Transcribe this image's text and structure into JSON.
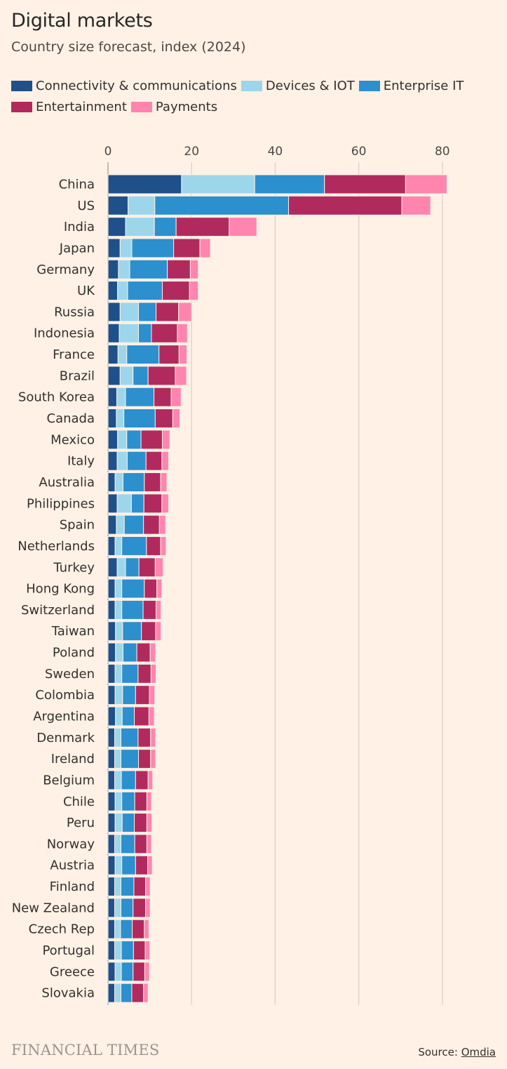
{
  "header": {
    "title": "Digital markets",
    "subtitle": "Country size forecast, index (2024)"
  },
  "footer": {
    "brand": "FINANCIAL TIMES",
    "source_prefix": "Source:",
    "source_name": "Omdia"
  },
  "chart_data": {
    "type": "bar",
    "orientation": "horizontal",
    "stacked": true,
    "title": "Digital markets",
    "subtitle": "Country size forecast, index (2024)",
    "xlim": [
      0,
      85
    ],
    "xticks": [
      0,
      20,
      40,
      60,
      80
    ],
    "grid": true,
    "legend_position": "top",
    "categories": [
      "China",
      "US",
      "India",
      "Japan",
      "Germany",
      "UK",
      "Russia",
      "Indonesia",
      "France",
      "Brazil",
      "South Korea",
      "Canada",
      "Mexico",
      "Italy",
      "Australia",
      "Philippines",
      "Spain",
      "Netherlands",
      "Turkey",
      "Hong Kong",
      "Switzerland",
      "Taiwan",
      "Poland",
      "Sweden",
      "Colombia",
      "Argentina",
      "Denmark",
      "Ireland",
      "Belgium",
      "Chile",
      "Peru",
      "Norway",
      "Austria",
      "Finland",
      "New Zealand",
      "Czech Rep",
      "Portugal",
      "Greece",
      "Slovakia"
    ],
    "series": [
      {
        "name": "Connectivity & communications",
        "color": "#1F5089",
        "values": [
          17.6,
          4.8,
          4.2,
          2.9,
          2.5,
          2.3,
          2.9,
          2.7,
          2.4,
          2.9,
          2.1,
          2.0,
          2.3,
          2.2,
          1.7,
          2.2,
          2.0,
          1.7,
          2.2,
          1.7,
          1.7,
          1.8,
          1.8,
          1.7,
          1.7,
          1.8,
          1.6,
          1.6,
          1.6,
          1.7,
          1.7,
          1.6,
          1.7,
          1.6,
          1.6,
          1.6,
          1.6,
          1.7,
          1.6
        ]
      },
      {
        "name": "Devices & IOT",
        "color": "#9DD6EA",
        "values": [
          17.5,
          6.4,
          6.9,
          2.8,
          2.7,
          2.4,
          4.4,
          4.6,
          2.1,
          3.1,
          2.1,
          1.8,
          2.2,
          2.4,
          1.9,
          3.4,
          1.9,
          1.6,
          2.0,
          1.6,
          1.6,
          1.7,
          1.8,
          1.6,
          1.8,
          1.6,
          1.5,
          1.5,
          1.6,
          1.6,
          1.7,
          1.5,
          1.6,
          1.5,
          1.5,
          1.4,
          1.6,
          1.5,
          1.5
        ]
      },
      {
        "name": "Enterprise IT",
        "color": "#2C8FCE",
        "values": [
          16.7,
          32.0,
          5.2,
          10.0,
          9.0,
          8.3,
          4.2,
          3.1,
          7.7,
          3.6,
          6.8,
          7.5,
          3.4,
          4.5,
          5.1,
          3.0,
          4.6,
          5.9,
          3.2,
          5.4,
          5.1,
          4.5,
          3.3,
          3.9,
          3.1,
          2.9,
          4.1,
          4.2,
          3.4,
          3.1,
          2.9,
          3.3,
          3.3,
          3.1,
          2.9,
          2.8,
          2.9,
          2.8,
          2.6
        ]
      },
      {
        "name": "Entertainment",
        "color": "#B12A5E",
        "values": [
          19.4,
          27.1,
          12.7,
          6.3,
          5.5,
          6.5,
          5.4,
          6.2,
          4.8,
          6.5,
          4.1,
          4.2,
          5.1,
          3.8,
          3.9,
          4.3,
          3.8,
          3.4,
          3.9,
          3.0,
          3.1,
          3.4,
          3.2,
          3.1,
          3.3,
          3.5,
          3.0,
          2.9,
          3.0,
          2.9,
          3.0,
          2.9,
          2.9,
          2.8,
          3.0,
          2.9,
          2.8,
          2.8,
          2.8
        ]
      },
      {
        "name": "Payments",
        "color": "#FF85AE",
        "values": [
          9.9,
          6.9,
          6.6,
          2.5,
          1.9,
          2.1,
          3.1,
          2.4,
          1.9,
          2.7,
          2.4,
          1.7,
          1.8,
          1.6,
          1.5,
          1.6,
          1.5,
          1.3,
          1.9,
          1.2,
          1.2,
          1.3,
          1.3,
          1.2,
          1.3,
          1.3,
          1.2,
          1.2,
          1.1,
          1.1,
          1.2,
          1.1,
          1.1,
          1.1,
          1.1,
          1.1,
          1.1,
          1.1,
          1.1
        ]
      }
    ]
  }
}
